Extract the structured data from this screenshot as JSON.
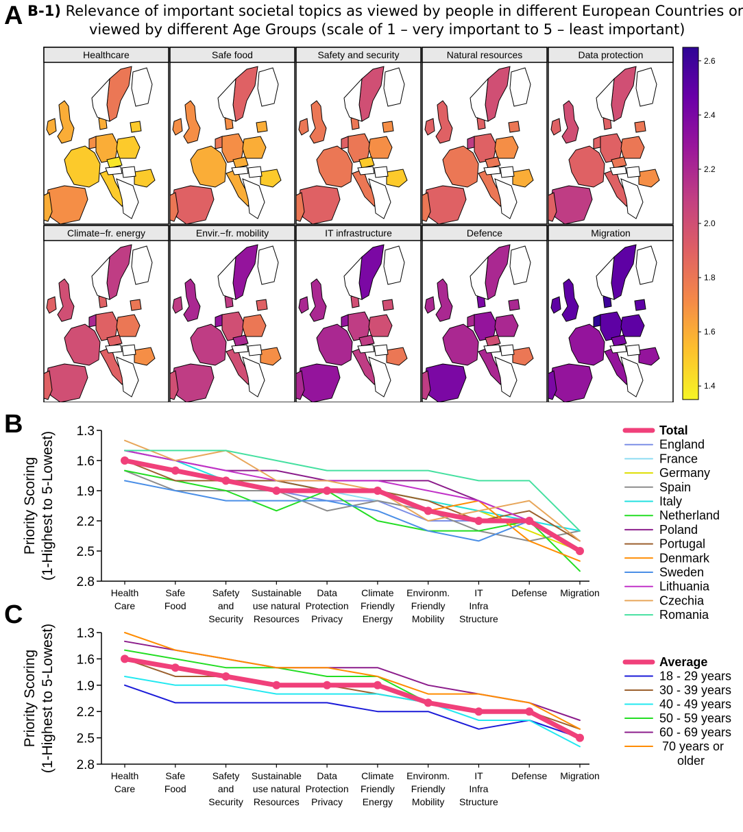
{
  "panel_a": {
    "letter": "A",
    "subtitle_tag": "B-1)",
    "title_line1": "Relevance of important societal topics as viewed by people in different European Countries or",
    "title_line2": "viewed by different Age Groups (scale of 1 – very important to 5 – least important)",
    "maps": [
      {
        "title": "Healthcare"
      },
      {
        "title": "Safe food"
      },
      {
        "title": "Safety and security"
      },
      {
        "title": "Natural resources"
      },
      {
        "title": "Data protection"
      },
      {
        "title": "Climate−fr. energy"
      },
      {
        "title": "Envir.−fr. mobility"
      },
      {
        "title": "IT infrastructure"
      },
      {
        "title": "Defence"
      },
      {
        "title": "Migration"
      }
    ],
    "colorbar": {
      "min": 1.35,
      "max": 2.65,
      "ticks": [
        1.4,
        1.6,
        1.8,
        2.0,
        2.2,
        2.4,
        2.6
      ],
      "tick_labels": [
        "1.4",
        "1.6",
        "1.8",
        "2.0",
        "2.2",
        "2.4",
        "2.6"
      ],
      "colors": [
        "#f6f525",
        "#fdc02d",
        "#f48849",
        "#de5f65",
        "#c13f83",
        "#9a179b",
        "#6a00a8",
        "#2e0595"
      ]
    }
  },
  "chart_data": [
    {
      "panel": "B",
      "type": "line",
      "ylabel_line1": "Priority Scoring",
      "ylabel_line2": "(1-Highest to 5-Lowest)",
      "ylim": [
        1.3,
        2.8
      ],
      "yticks": [
        "1.3",
        "1.6",
        "1.9",
        "2.2",
        "2.5",
        "2.8"
      ],
      "categories": [
        [
          "Health",
          "Care"
        ],
        [
          "Safe",
          "Food"
        ],
        [
          "Safety",
          "and",
          "Security"
        ],
        [
          "Sustainable",
          "use natural",
          "Resources"
        ],
        [
          "Data",
          "Protection",
          "Privacy"
        ],
        [
          "Climate",
          "Friendly",
          "Energy"
        ],
        [
          "Environm.",
          "Friendly",
          "Mobility"
        ],
        [
          "IT",
          "Infra",
          "Structure"
        ],
        [
          "Defense"
        ],
        [
          "Migration"
        ]
      ],
      "highlight": "Total",
      "series": [
        {
          "name": "England",
          "color": "#7b8ee6",
          "values": [
            1.6,
            1.7,
            1.8,
            1.9,
            2.0,
            2.0,
            2.2,
            2.2,
            2.2,
            2.5
          ]
        },
        {
          "name": "France",
          "color": "#8ddcf2",
          "values": [
            1.5,
            1.6,
            1.8,
            1.8,
            1.9,
            2.0,
            2.1,
            2.2,
            2.2,
            2.3
          ]
        },
        {
          "name": "Germany",
          "color": "#dede00",
          "values": [
            1.6,
            1.7,
            1.8,
            1.9,
            1.9,
            1.9,
            2.0,
            2.1,
            2.3,
            2.5
          ]
        },
        {
          "name": "Spain",
          "color": "#8c8c8c",
          "values": [
            1.7,
            1.9,
            1.9,
            1.9,
            2.1,
            2.0,
            2.1,
            2.3,
            2.4,
            2.3
          ]
        },
        {
          "name": "Italy",
          "color": "#21e0e0",
          "values": [
            1.5,
            1.6,
            1.8,
            1.8,
            1.9,
            1.9,
            2.0,
            2.1,
            2.2,
            2.3
          ]
        },
        {
          "name": "Netherland",
          "color": "#22dd22",
          "values": [
            1.7,
            1.8,
            1.9,
            2.1,
            1.9,
            2.2,
            2.3,
            2.3,
            2.2,
            2.7
          ]
        },
        {
          "name": "Poland",
          "color": "#8b1c8b",
          "values": [
            1.5,
            1.6,
            1.7,
            1.7,
            1.8,
            1.8,
            1.8,
            2.0,
            2.2,
            2.5
          ]
        },
        {
          "name": "Portugal",
          "color": "#9b5f2d",
          "values": [
            1.6,
            1.8,
            1.8,
            1.8,
            1.9,
            1.9,
            2.0,
            2.2,
            2.1,
            2.4
          ]
        },
        {
          "name": "Denmark",
          "color": "#ff8c00",
          "values": [
            1.6,
            1.7,
            1.8,
            1.9,
            1.9,
            1.9,
            2.1,
            2.0,
            2.4,
            2.6
          ]
        },
        {
          "name": "Sweden",
          "color": "#4a8ee6",
          "values": [
            1.8,
            1.9,
            2.0,
            2.0,
            2.0,
            2.1,
            2.3,
            2.4,
            2.2,
            2.5
          ]
        },
        {
          "name": "Lithuania",
          "color": "#c132c8",
          "values": [
            1.5,
            1.6,
            1.7,
            1.8,
            1.8,
            1.8,
            1.9,
            2.0,
            2.2,
            2.5
          ]
        },
        {
          "name": "Czechia",
          "color": "#e8a65a",
          "values": [
            1.4,
            1.6,
            1.5,
            1.8,
            1.8,
            1.9,
            2.2,
            2.1,
            2.0,
            2.4
          ]
        },
        {
          "name": "Romania",
          "color": "#45e0a0",
          "values": [
            1.5,
            1.5,
            1.5,
            1.6,
            1.7,
            1.7,
            1.7,
            1.8,
            1.8,
            2.3
          ]
        },
        {
          "name": "Total",
          "color": "#f0407a",
          "values": [
            1.6,
            1.7,
            1.8,
            1.9,
            1.9,
            1.9,
            2.1,
            2.2,
            2.2,
            2.5
          ]
        }
      ]
    },
    {
      "panel": "C",
      "type": "line",
      "ylabel_line1": "Priority Scoring",
      "ylabel_line2": "(1-Highest to 5-Lowest)",
      "ylim": [
        1.3,
        2.8
      ],
      "yticks": [
        "1.3",
        "1.6",
        "1.9",
        "2.2",
        "2.5",
        "2.8"
      ],
      "categories": [
        [
          "Health",
          "Care"
        ],
        [
          "Safe",
          "Food"
        ],
        [
          "Safety",
          "and",
          "Security"
        ],
        [
          "Sustainable",
          "use natural",
          "Resources"
        ],
        [
          "Data",
          "Protection",
          "Privacy"
        ],
        [
          "Climate",
          "Friendly",
          "Energy"
        ],
        [
          "Environm.",
          "Friendly",
          "Mobility"
        ],
        [
          "IT",
          "Infra",
          "Structure"
        ],
        [
          "Defense"
        ],
        [
          "Migration"
        ]
      ],
      "highlight": "Average",
      "series": [
        {
          "name": "18 - 29 years",
          "color": "#1a1ad8",
          "values": [
            1.9,
            2.1,
            2.1,
            2.1,
            2.1,
            2.2,
            2.2,
            2.4,
            2.3,
            2.5
          ]
        },
        {
          "name": "30 - 39 years",
          "color": "#9b5f2d",
          "values": [
            1.6,
            1.8,
            1.8,
            1.9,
            1.9,
            2.0,
            2.1,
            2.2,
            2.2,
            2.4
          ]
        },
        {
          "name": "40 - 49 years",
          "color": "#22e8f0",
          "values": [
            1.8,
            1.9,
            1.9,
            2.0,
            2.0,
            2.0,
            2.1,
            2.3,
            2.3,
            2.6
          ]
        },
        {
          "name": "50 - 59 years",
          "color": "#22dd22",
          "values": [
            1.5,
            1.6,
            1.7,
            1.7,
            1.8,
            1.8,
            2.1,
            2.2,
            2.2,
            2.5
          ]
        },
        {
          "name": "60 - 69 years",
          "color": "#8b1c8b",
          "values": [
            1.4,
            1.5,
            1.6,
            1.7,
            1.7,
            1.7,
            1.9,
            2.0,
            2.1,
            2.3
          ]
        },
        {
          "name": "70 years or older",
          "color": "#ff8c00",
          "values": [
            1.3,
            1.5,
            1.6,
            1.7,
            1.7,
            1.8,
            2.0,
            2.0,
            2.1,
            2.4
          ]
        },
        {
          "name": "Average",
          "color": "#f0407a",
          "values": [
            1.6,
            1.7,
            1.8,
            1.9,
            1.9,
            1.9,
            2.1,
            2.2,
            2.2,
            2.5
          ]
        }
      ]
    }
  ]
}
